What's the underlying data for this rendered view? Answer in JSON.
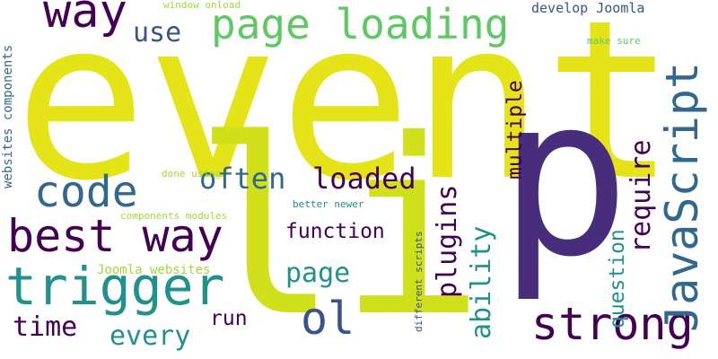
{
  "palette": {
    "yellow": "#e5e419",
    "lime": "#d0e11c",
    "green": "#5ec962",
    "teal": "#21918c",
    "blue": "#31688e",
    "indigo": "#3b528b",
    "purple": "#472d7b",
    "deep": "#440154",
    "pale": "#a0da39"
  },
  "words": {
    "event": "event",
    "p": "p",
    "li": "li",
    "way": "way",
    "page_loading": "page loading",
    "use": "use",
    "window_onload": "window onload",
    "develop_joomla": "develop Joomla",
    "make_sure": "make sure",
    "javascript": "JavaScript",
    "require": "require",
    "multiple": "multiple",
    "code": "code",
    "often": "often",
    "loaded": "loaded",
    "best_way": "best way",
    "function": "function",
    "page": "page",
    "trigger": "trigger",
    "ol": "ol",
    "time": "time",
    "every": "every",
    "run": "run",
    "strong": "strong",
    "plugins": "plugins",
    "ability": "ability",
    "question": "question",
    "websites_components": "websites components",
    "done_using": "done using",
    "components_modules": "components modules",
    "better_newer": "better newer",
    "joomla_websites": "Joomla websites",
    "different_scripts": "different scripts"
  }
}
